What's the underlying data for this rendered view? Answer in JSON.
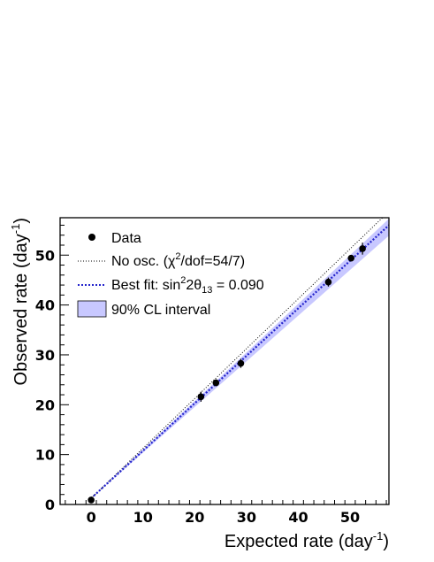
{
  "chart_data": {
    "type": "scatter",
    "xlabel": "Expected rate",
    "xlabel_unit": "(day",
    "xlabel_sup": "-1",
    "ylabel": "Observed rate",
    "ylabel_unit": "(day",
    "ylabel_sup": "-1",
    "xlim": [
      -6,
      57.5
    ],
    "ylim": [
      0,
      57.5
    ],
    "x_ticks": [
      0,
      10,
      20,
      30,
      40,
      50
    ],
    "y_ticks": [
      0,
      10,
      20,
      30,
      40,
      50
    ],
    "legend_position": "top-left",
    "legend": {
      "data": "Data",
      "no_osc_pre": "No osc. (",
      "no_osc_chi": "χ",
      "no_osc_sup": "2",
      "no_osc_post": "/dof=54/7)",
      "fit_pre": "Best fit: sin",
      "fit_sup": "2",
      "fit_mid": "2θ",
      "fit_sub": "13",
      "fit_post": " = 0.090",
      "band": "90% CL interval"
    },
    "series": [
      {
        "kind": "points",
        "x": [
          0,
          21.2,
          24.1,
          28.9,
          45.8,
          50.2,
          52.4
        ],
        "y": [
          0.9,
          21.6,
          24.4,
          28.3,
          44.6,
          49.4,
          51.3
        ],
        "yerr": [
          0.5,
          1.0,
          0.7,
          0.9,
          0.9,
          0.6,
          1.2
        ]
      },
      {
        "kind": "line",
        "style": "dotted",
        "color": "#000000",
        "x": [
          0,
          57.5
        ],
        "y": [
          1.25,
          58.75
        ]
      },
      {
        "kind": "line",
        "style": "dashed",
        "color": "#2222cc",
        "x": [
          0,
          57.5
        ],
        "y": [
          1.25,
          56.0
        ]
      },
      {
        "kind": "band",
        "color": "#c8c8ff",
        "x": [
          0,
          57.5
        ],
        "y_low": [
          1.25,
          53.9
        ],
        "y_high": [
          1.25,
          57.3
        ]
      }
    ]
  }
}
